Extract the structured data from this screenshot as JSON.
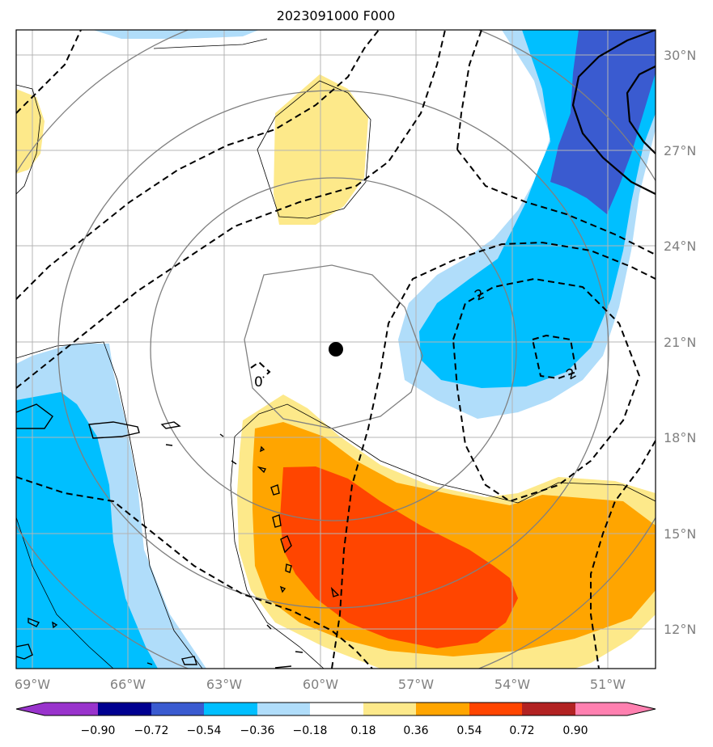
{
  "title": "2023091000 F000",
  "colors": {
    "c_neg090": "#9933cc",
    "c_neg072": "#000090",
    "c_neg054": "#3a5bd0",
    "c_neg036": "#00bfff",
    "c_neg018": "#b0ddfa",
    "c_zero": "#ffffff",
    "c_pos018": "#fde98a",
    "c_pos036": "#ffa500",
    "c_pos054": "#ff4500",
    "c_pos072": "#b22222",
    "c_pos090": "#ff80b0"
  },
  "map": {
    "lon_labels": [
      "69°W",
      "66°W",
      "63°W",
      "60°W",
      "57°W",
      "54°W",
      "51°W"
    ],
    "lat_labels": [
      "30°N",
      "27°N",
      "24°N",
      "21°N",
      "18°N",
      "15°N",
      "12°N"
    ],
    "center_marker": "storm-center-dot",
    "contour_labels": [
      "2",
      "2",
      "0"
    ]
  },
  "colorbar": {
    "ticks": [
      "−0.90",
      "−0.72",
      "−0.54",
      "−0.36",
      "−0.18",
      "0.18",
      "0.36",
      "0.54",
      "0.72",
      "0.90"
    ]
  }
}
